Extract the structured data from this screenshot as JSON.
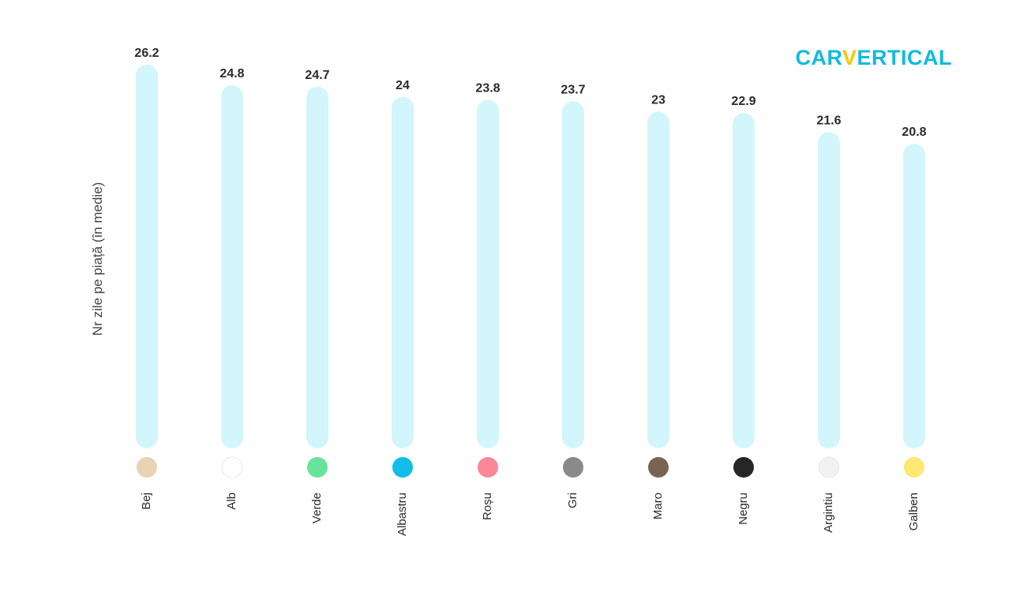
{
  "logo": {
    "left": "CAR",
    "v": "V",
    "right": "ERTICAL"
  },
  "colors": {
    "bar_fill": "#d2f6fb",
    "brand_blue": "#12b9de",
    "brand_yellow": "#f6c700"
  },
  "chart_data": {
    "type": "bar",
    "ylabel": "Nr zile pe piață (în medie)",
    "xlabel": "",
    "categories": [
      "Bej",
      "Alb",
      "Verde",
      "Albastru",
      "Roșu",
      "Gri",
      "Maro",
      "Negru",
      "Argintiu",
      "Galben"
    ],
    "values": [
      26.2,
      24.8,
      24.7,
      24,
      23.8,
      23.7,
      23,
      22.9,
      21.6,
      20.8
    ],
    "value_labels": [
      "26.2",
      "24.8",
      "24.7",
      "24",
      "23.8",
      "23.7",
      "23",
      "22.9",
      "21.6",
      "20.8"
    ],
    "swatch_colors": [
      "#e8d3b2",
      "#ffffff",
      "#68e39b",
      "#12bde7",
      "#fb8896",
      "#8a8a8a",
      "#7a6350",
      "#262626",
      "#f2f2f2",
      "#fde872"
    ],
    "ylim": [
      0,
      26.2
    ],
    "grid": false,
    "legend": "none"
  }
}
